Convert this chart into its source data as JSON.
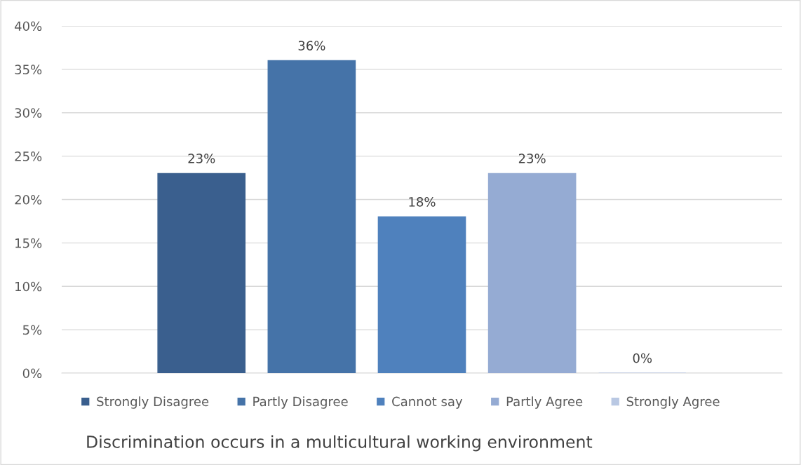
{
  "chart_data": {
    "type": "bar",
    "xlabel": "Discrimination occurs in a multicultural working environment",
    "categories": [
      null
    ],
    "series": [
      {
        "name": "Strongly Disagree",
        "color": "#3a5f8e",
        "values": [
          23
        ],
        "value_labels": [
          "23%"
        ]
      },
      {
        "name": "Partly Disagree",
        "color": "#4573a8",
        "values": [
          36
        ],
        "value_labels": [
          "36%"
        ]
      },
      {
        "name": "Cannot say",
        "color": "#4f81bd",
        "values": [
          18
        ],
        "value_labels": [
          "18%"
        ]
      },
      {
        "name": "Partly Agree",
        "color": "#95abd3",
        "values": [
          23
        ],
        "value_labels": [
          "23%"
        ]
      },
      {
        "name": "Strongly Agree",
        "color": "#b9c8e3",
        "values": [
          0
        ],
        "value_labels": [
          "0%"
        ]
      }
    ],
    "ylim": [
      0,
      40
    ],
    "yticks": [
      {
        "value": 0,
        "label": "0%"
      },
      {
        "value": 5,
        "label": "5%"
      },
      {
        "value": 10,
        "label": "10%"
      },
      {
        "value": 15,
        "label": "15%"
      },
      {
        "value": 20,
        "label": "20%"
      },
      {
        "value": 25,
        "label": "25%"
      },
      {
        "value": 30,
        "label": "30%"
      },
      {
        "value": 35,
        "label": "35%"
      },
      {
        "value": 40,
        "label": "40%"
      }
    ],
    "grid": "y",
    "legend": "bottom"
  }
}
